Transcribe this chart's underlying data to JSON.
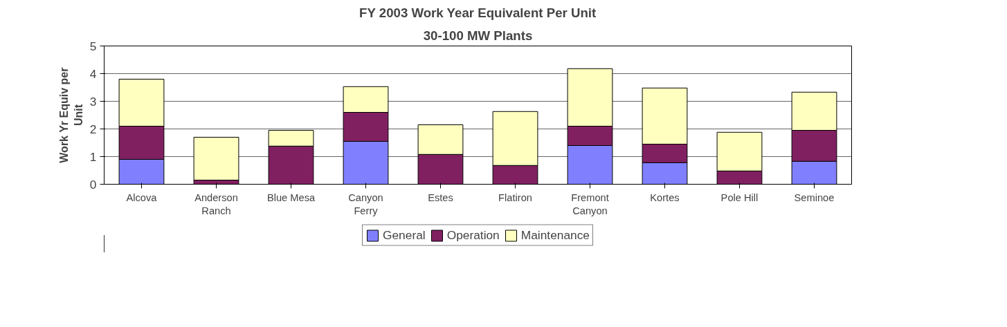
{
  "chart_data": {
    "type": "bar",
    "title": "FY 2003 Work Year Equivalent Per Unit",
    "subtitle": "30-100 MW Plants",
    "ylabel": "Work Yr Equiv per\nUnit",
    "stacked": true,
    "categories": [
      "Alcova",
      "Anderson\nRanch",
      "Blue Mesa",
      "Canyon\nFerry",
      "Estes",
      "Flatiron",
      "Fremont\nCanyon",
      "Kortes",
      "Pole Hill",
      "Seminoe"
    ],
    "series": [
      {
        "name": "General",
        "color": "#8080ff",
        "values": [
          0.9,
          null,
          null,
          1.55,
          null,
          null,
          1.4,
          0.78,
          null,
          0.83
        ]
      },
      {
        "name": "Operation",
        "color": "#802060",
        "values": [
          1.2,
          0.15,
          1.38,
          1.05,
          1.08,
          0.68,
          0.7,
          0.67,
          0.48,
          1.12
        ]
      },
      {
        "name": "Maintenance",
        "color": "#ffffc0",
        "values": [
          1.7,
          1.55,
          0.57,
          0.93,
          1.07,
          1.95,
          2.08,
          2.03,
          1.4,
          1.38
        ]
      }
    ],
    "ylim": [
      0,
      5
    ],
    "yticks": [
      0,
      1,
      2,
      3,
      4,
      5
    ],
    "grid": "y",
    "legend": "bottom"
  }
}
